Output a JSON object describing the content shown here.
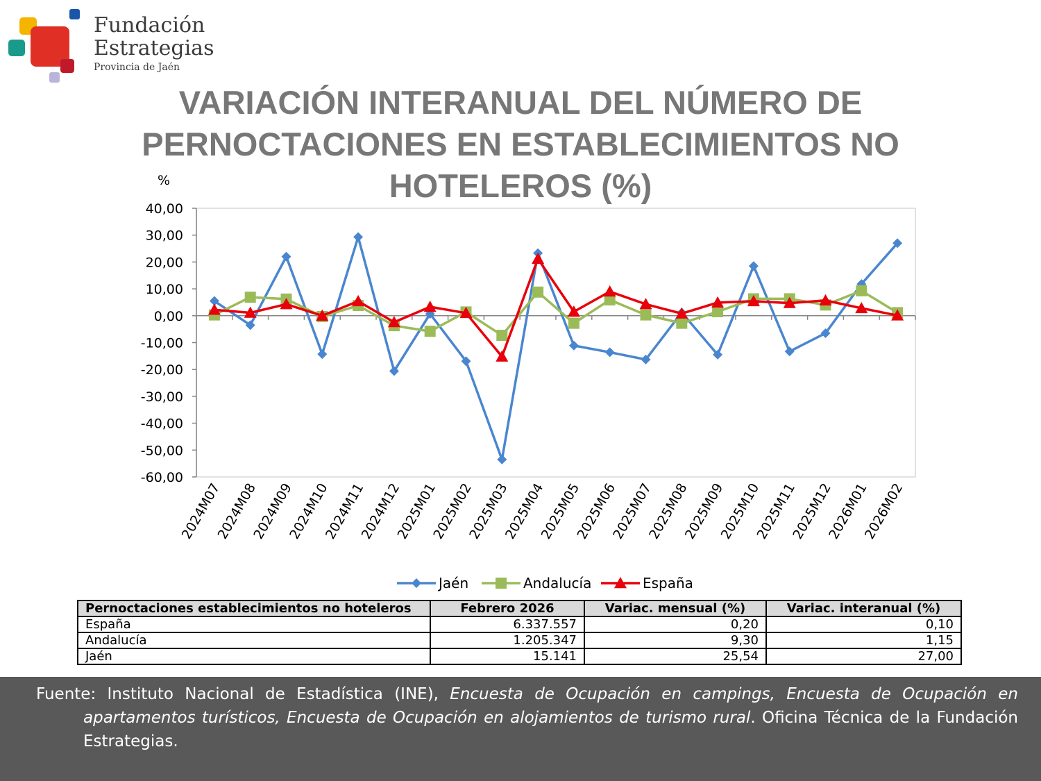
{
  "logo": {
    "line1": "Fundación",
    "line2": "Estrategias",
    "line3": "Provincia de Jaén"
  },
  "title": "VARIACIÓN INTERANUAL DEL NÚMERO DE PERNOCTACIONES EN ESTABLECIMIENTOS NO HOTELEROS (%)",
  "colors": {
    "jaen": "#4a86cf",
    "andalucia": "#9bbb59",
    "espana": "#e8000b",
    "title": "#777777",
    "footer_bg": "#595959"
  },
  "chart_data": {
    "type": "line",
    "ylabel": "%",
    "ylim": [
      -60,
      40
    ],
    "yticks": [
      "40,00",
      "30,00",
      "20,00",
      "10,00",
      "0,00",
      "-10,00",
      "-20,00",
      "-30,00",
      "-40,00",
      "-50,00",
      "-60,00"
    ],
    "ytick_values": [
      40,
      30,
      20,
      10,
      0,
      -10,
      -20,
      -30,
      -40,
      -50,
      -60
    ],
    "categories": [
      "2024M07",
      "2024M08",
      "2024M09",
      "2024M10",
      "2024M11",
      "2024M12",
      "2025M01",
      "2025M02",
      "2025M03",
      "2025M04",
      "2025M05",
      "2025M06",
      "2025M07",
      "2025M08",
      "2025M09",
      "2025M10",
      "2025M11",
      "2025M12",
      "2026M01",
      "2026M02"
    ],
    "grid": false,
    "legend_position": "bottom",
    "series": [
      {
        "name": "Jaén",
        "marker": "diamond",
        "color": "#4a86cf",
        "values": [
          5.5,
          -3.5,
          22.0,
          -14.3,
          29.3,
          -20.6,
          0.7,
          -16.9,
          -53.5,
          23.3,
          -11.1,
          -13.6,
          -16.3,
          1.2,
          -14.5,
          18.5,
          -13.3,
          -6.5,
          11.8,
          27.0
        ]
      },
      {
        "name": "Andalucía",
        "marker": "square",
        "color": "#9bbb59",
        "values": [
          0.3,
          6.9,
          6.2,
          -0.3,
          3.8,
          -3.7,
          -5.8,
          1.4,
          -7.3,
          8.8,
          -2.8,
          5.9,
          0.3,
          -2.8,
          1.5,
          6.3,
          6.3,
          4.0,
          9.3,
          1.15
        ]
      },
      {
        "name": "España",
        "marker": "triangle",
        "color": "#e8000b",
        "values": [
          2.2,
          1.1,
          4.3,
          0.0,
          5.4,
          -2.4,
          3.3,
          1.0,
          -15.2,
          21.2,
          1.5,
          9.0,
          4.3,
          0.8,
          4.9,
          5.4,
          4.7,
          5.7,
          2.8,
          0.1
        ]
      }
    ]
  },
  "table": {
    "headers": [
      "Pernoctaciones establecimientos no hoteleros",
      "Febrero 2026",
      "Variac. mensual (%)",
      "Variac. interanual (%)"
    ],
    "rows": [
      [
        "España",
        "6.337.557",
        "0,20",
        "0,10"
      ],
      [
        "Andalucía",
        "1.205.347",
        "9,30",
        "1,15"
      ],
      [
        "Jaén",
        "15.141",
        "25,54",
        "27,00"
      ]
    ]
  },
  "footer": {
    "lead": "Fuente: Instituto Nacional de Estadística (INE), ",
    "italic": "Encuesta de Ocupación en campings, Encuesta de Ocupación en apartamentos turísticos, Encuesta de Ocupación en alojamientos de turismo rural",
    "tail": ". Oficina Técnica de la Fundación Estrategias."
  }
}
